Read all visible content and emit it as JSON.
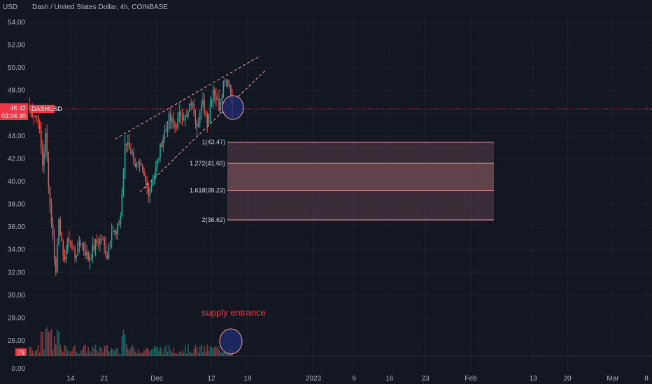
{
  "header": {
    "currency": "USD",
    "title": "Dash / United States Dollar, 4h, COINBASE"
  },
  "colors": {
    "background": "#131722",
    "up": "#26a69a",
    "down": "#ef5350",
    "price_label": "#f23645",
    "fib_line": "#f7a3a3",
    "trendline": "#f7a3a3",
    "circle_fill": "#1e2a6b"
  },
  "price_label": {
    "price": "46.42",
    "countdown": "03:04:30",
    "symbol": "DASHUSD"
  },
  "volume_label": "79",
  "annotation": "supply entrance",
  "chart_data": {
    "type": "candlestick",
    "title": "Dash / United States Dollar, 4h, COINBASE",
    "y_unit": "USD",
    "ylim": [
      24,
      55
    ],
    "y_ticks": [
      "54.00",
      "52.00",
      "50.00",
      "48.00",
      "46.00",
      "44.00",
      "42.00",
      "40.00",
      "38.00",
      "36.00",
      "34.00",
      "32.00",
      "30.00",
      "28.00",
      "26.00"
    ],
    "y_tick_values": [
      54,
      52,
      50,
      48,
      46,
      44,
      42,
      40,
      38,
      36,
      34,
      32,
      30,
      28,
      26
    ],
    "volume_axis_label": "0.00",
    "x_ticks": [
      "14",
      "21",
      "Dec",
      "12",
      "19",
      "2023",
      "9",
      "16",
      "23",
      "Feb",
      "13",
      "20",
      "Mar",
      "8"
    ],
    "current_price": 46.42,
    "price_anchors": [
      [
        0,
        46.5
      ],
      [
        6,
        45.5
      ],
      [
        9,
        41.5
      ],
      [
        11,
        44
      ],
      [
        14,
        38
      ],
      [
        18,
        32
      ],
      [
        20,
        37
      ],
      [
        23,
        33
      ],
      [
        27,
        35
      ],
      [
        31,
        33.5
      ],
      [
        35,
        34.8
      ],
      [
        40,
        33.2
      ],
      [
        45,
        34.5
      ],
      [
        49,
        35.0
      ],
      [
        53,
        33.5
      ],
      [
        56,
        36.0
      ],
      [
        59,
        35.2
      ],
      [
        62,
        37
      ],
      [
        65,
        43
      ],
      [
        67,
        43.5
      ],
      [
        72,
        41.5
      ],
      [
        76,
        41.0
      ],
      [
        81,
        39.2
      ],
      [
        85,
        40.5
      ],
      [
        90,
        43.5
      ],
      [
        95,
        45.5
      ],
      [
        99,
        44.8
      ],
      [
        103,
        46.0
      ],
      [
        107,
        45.5
      ],
      [
        110,
        47.0
      ],
      [
        114,
        45.2
      ],
      [
        118,
        46.8
      ],
      [
        121,
        45.5
      ],
      [
        125,
        48.2
      ],
      [
        129,
        46.6
      ],
      [
        133,
        49.3
      ],
      [
        136,
        48.5
      ],
      [
        138,
        46.4
      ]
    ],
    "fib_levels": [
      {
        "label": "1(43.47)",
        "value": 43.47
      },
      {
        "label": "1.272(41.60)",
        "value": 41.6
      },
      {
        "label": "1.618(39.23)",
        "value": 39.23
      },
      {
        "label": "2(36.62)",
        "value": 36.62
      }
    ],
    "annotations": [
      "supply entrance"
    ]
  }
}
